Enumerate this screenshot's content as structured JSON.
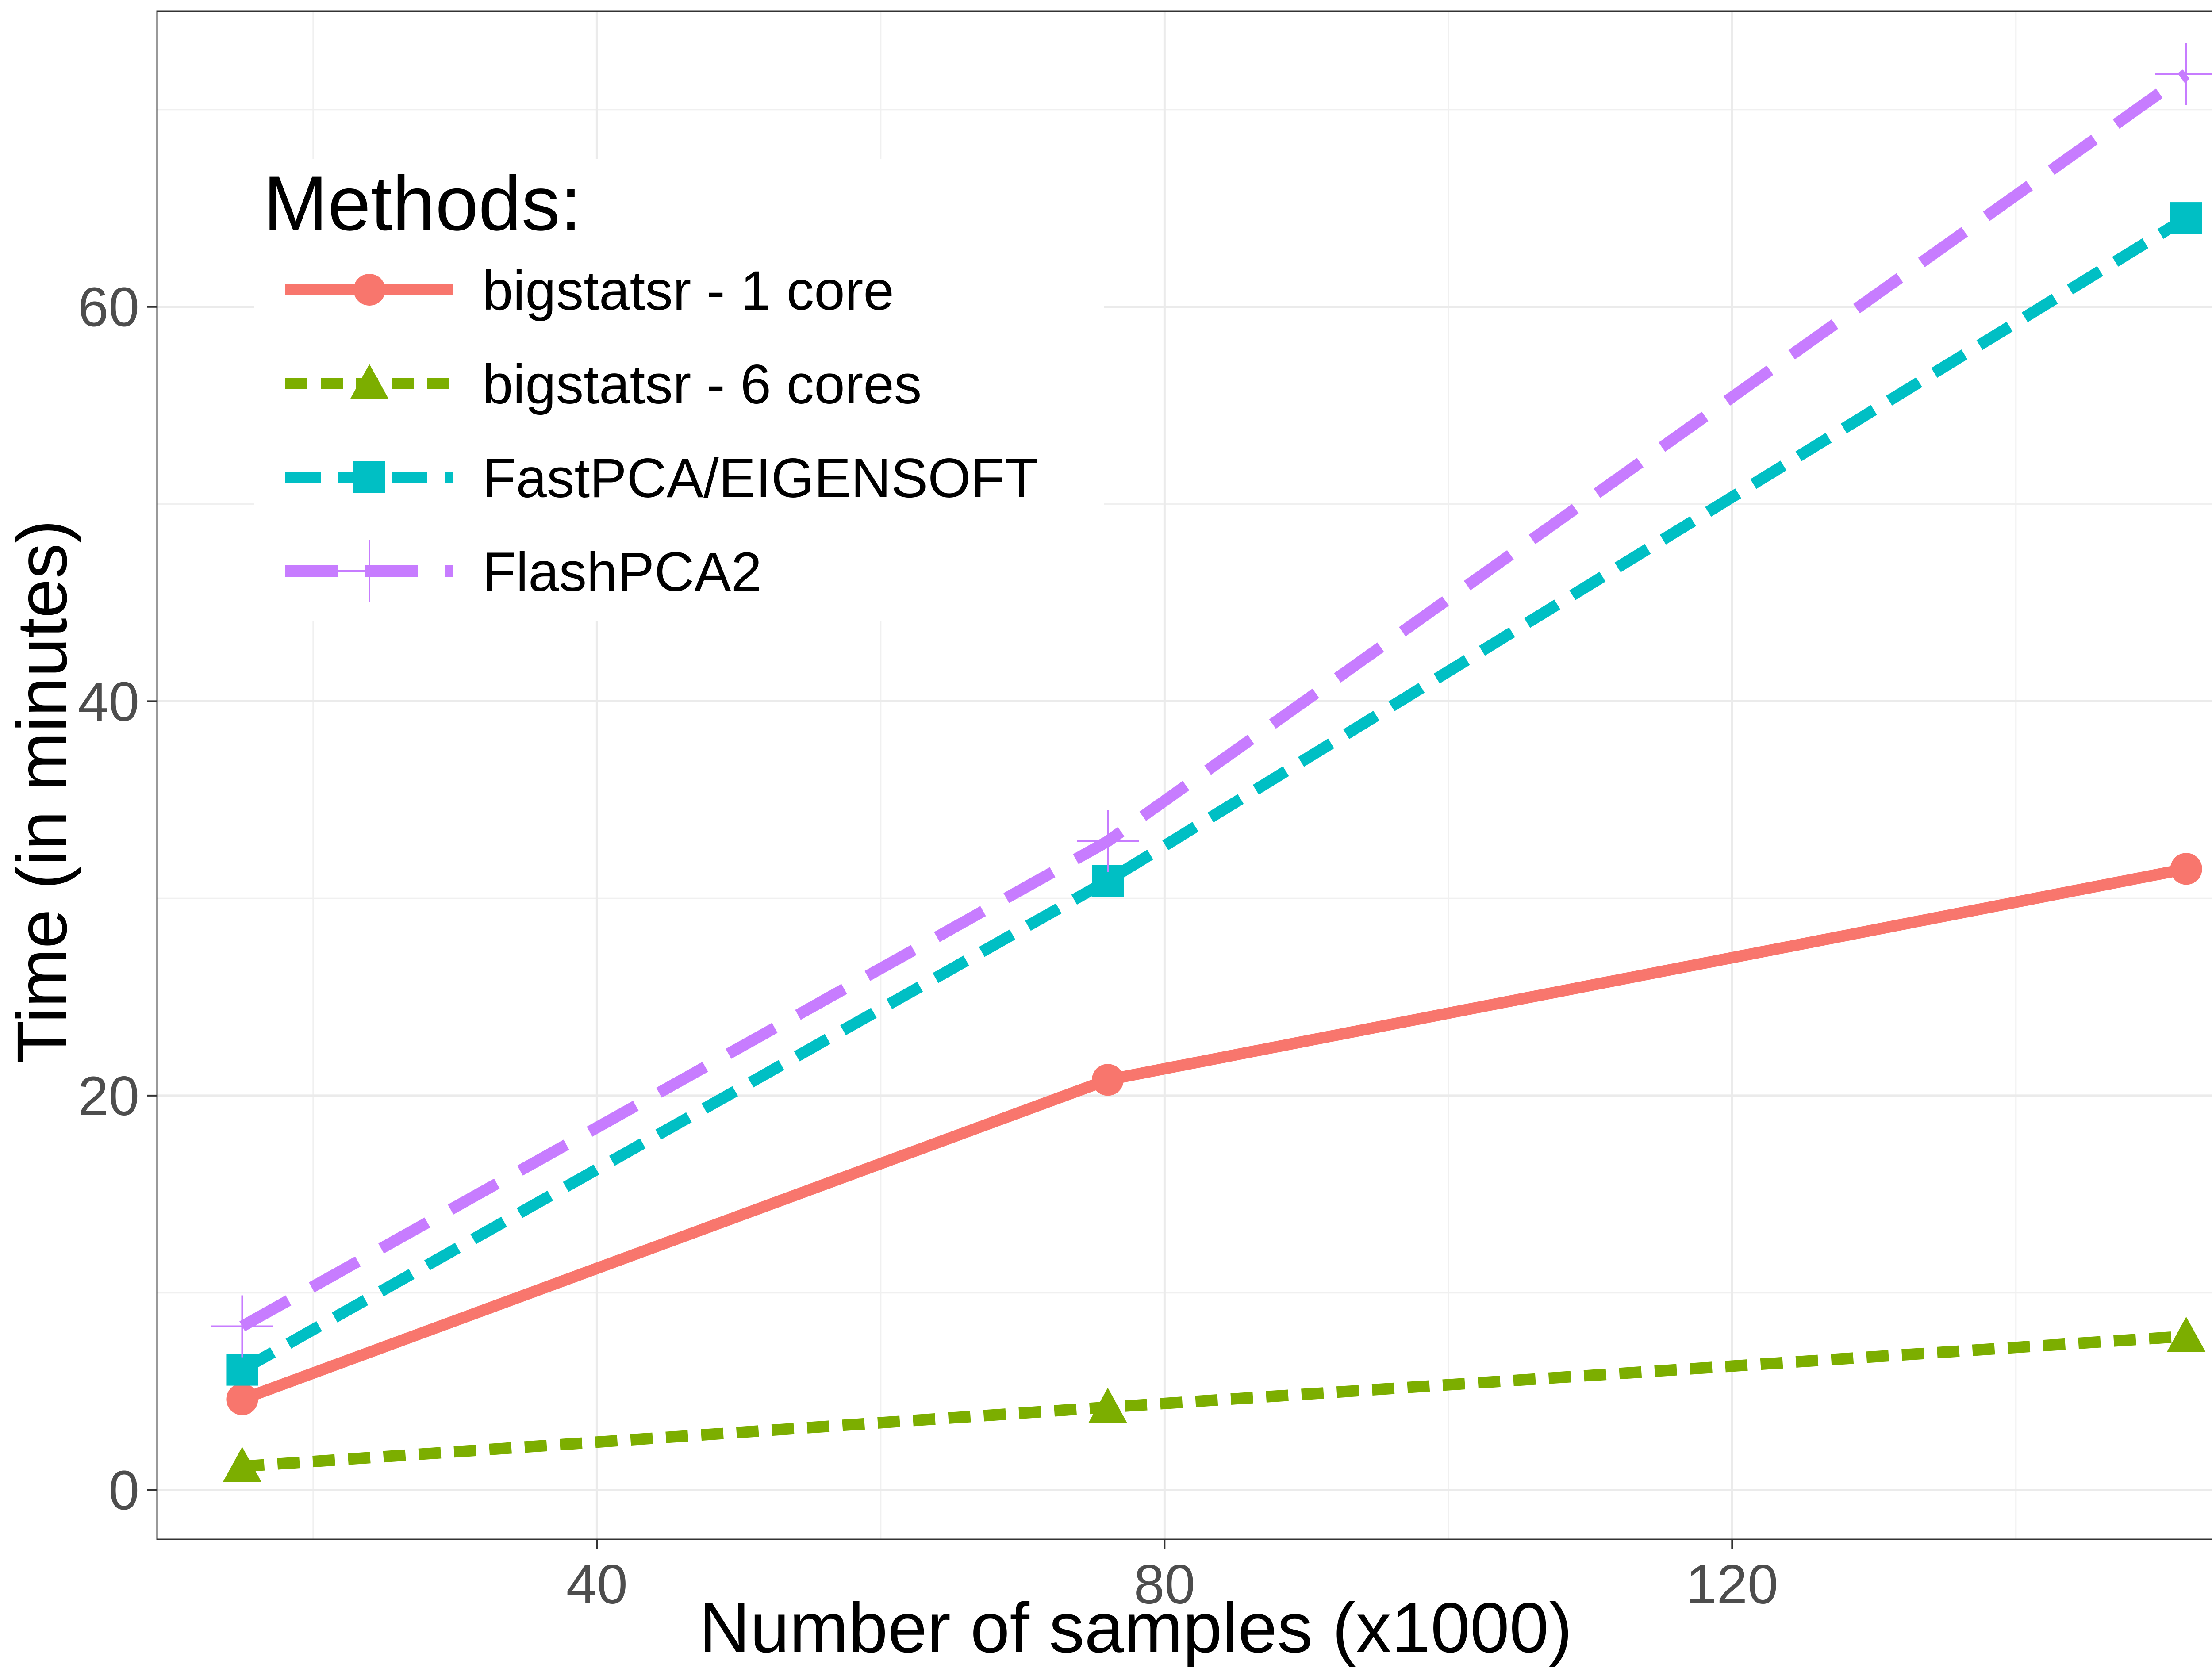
{
  "chart_data": {
    "type": "line",
    "title": "",
    "xlabel": "Number of samples (x1000)",
    "ylabel": "Time (in minutes)",
    "xlim": [
      9,
      156
    ],
    "ylim": [
      -2.5,
      75
    ],
    "xticks": [
      40,
      80,
      120
    ],
    "yticks": [
      0,
      20,
      40,
      60
    ],
    "x": [
      15,
      76,
      152
    ],
    "grid": true,
    "legend_title": "Methods:",
    "legend_position": "top-left",
    "series": [
      {
        "name": "bigstatsr - 1 core",
        "values": [
          4.6,
          20.8,
          31.5
        ],
        "color": "#F8766D",
        "dash": "solid",
        "marker": "circle"
      },
      {
        "name": "bigstatsr - 6 cores",
        "values": [
          1.2,
          4.2,
          7.8
        ],
        "color": "#7CAE00",
        "dash": "short-dash",
        "marker": "triangle"
      },
      {
        "name": "FastPCA/EIGENSOFT",
        "values": [
          6.1,
          30.9,
          64.5
        ],
        "color": "#00BFC4",
        "dash": "dash",
        "marker": "square"
      },
      {
        "name": "FlashPCA2",
        "values": [
          8.3,
          32.9,
          71.8
        ],
        "color": "#C77CFF",
        "dash": "long-dash",
        "marker": "plus"
      }
    ]
  }
}
